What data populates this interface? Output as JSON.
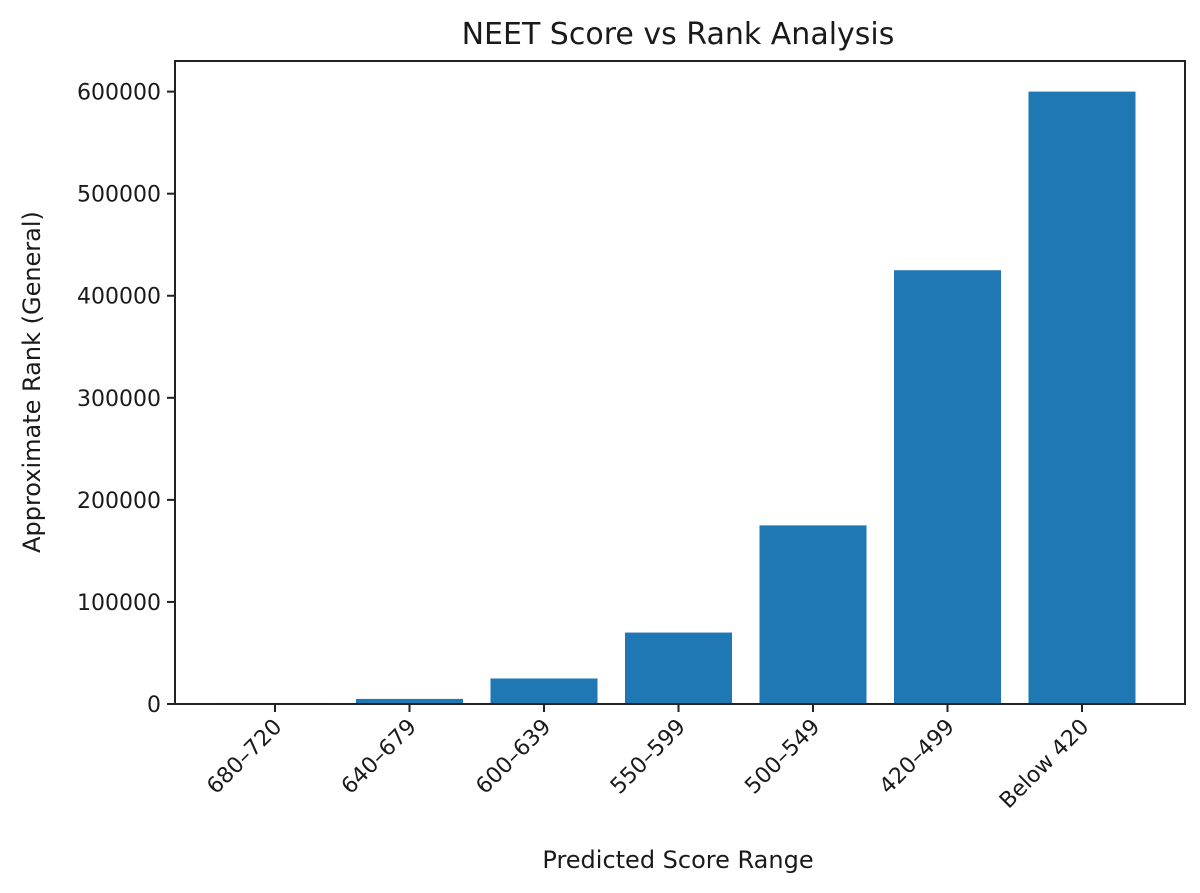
{
  "chart_data": {
    "type": "bar",
    "title": "NEET Score vs Rank Analysis",
    "xlabel": "Predicted Score Range",
    "ylabel": "Approximate Rank (General)",
    "categories": [
      "680–720",
      "640–679",
      "600–639",
      "550–599",
      "500–549",
      "420–499",
      "Below 420"
    ],
    "values": [
      1000,
      5000,
      25000,
      70000,
      175000,
      425000,
      600000
    ],
    "ylim": [
      0,
      630000
    ],
    "yticks": [
      0,
      100000,
      200000,
      300000,
      400000,
      500000,
      600000
    ],
    "ytick_labels": [
      "0",
      "100000",
      "200000",
      "300000",
      "400000",
      "500000",
      "600000"
    ],
    "grid": false,
    "bar_color": "#1f77b4"
  }
}
